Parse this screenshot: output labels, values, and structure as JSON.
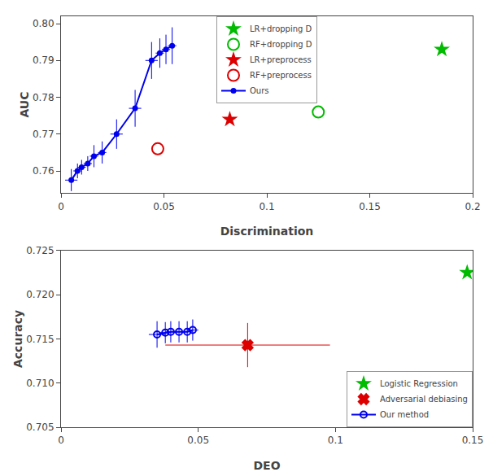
{
  "chart_data": [
    {
      "type": "scatter",
      "xlabel": "Discrimination",
      "ylabel": "AUC",
      "xlim": [
        0,
        0.2
      ],
      "ylim": [
        0.754,
        0.802
      ],
      "xticks": [
        0,
        0.05,
        0.1,
        0.15,
        0.2
      ],
      "yticks": [
        0.76,
        0.77,
        0.78,
        0.79,
        {
          "value": 0.8,
          "label": "0.80"
        }
      ],
      "grid": false,
      "legend": "upper center",
      "series": [
        {
          "name": "LR+dropping D",
          "color": "#00BB00",
          "marker": "star",
          "x": [
            0.185
          ],
          "y": [
            0.793
          ]
        },
        {
          "name": "RF+dropping D",
          "color": "#00BB00",
          "marker": "circle-open",
          "x": [
            0.125
          ],
          "y": [
            0.776
          ]
        },
        {
          "name": "LR+preprocess",
          "color": "#DD0000",
          "marker": "star",
          "x": [
            0.082
          ],
          "y": [
            0.774
          ]
        },
        {
          "name": "RF+preprocess",
          "color": "#DD0000",
          "marker": "circle-open",
          "x": [
            0.047
          ],
          "y": [
            0.766
          ]
        },
        {
          "name": "Ours",
          "color": "#0000EE",
          "marker": "circle",
          "line_style": "solid",
          "x": [
            0.005,
            0.008,
            0.01,
            0.013,
            0.016,
            0.02,
            0.027,
            0.036,
            0.044,
            0.048,
            0.051,
            0.054
          ],
          "y": [
            0.7575,
            0.76,
            0.761,
            0.762,
            0.764,
            0.765,
            0.77,
            0.777,
            0.79,
            0.792,
            0.793,
            0.794
          ],
          "xerr": [
            0.003,
            0.002,
            0.002,
            0.002,
            0.002,
            0.002,
            0.003,
            0.003,
            0.003,
            0.002,
            0.002,
            0.002
          ],
          "yerr": [
            0.003,
            0.002,
            0.002,
            0.002,
            0.003,
            0.003,
            0.004,
            0.005,
            0.005,
            0.004,
            0.004,
            0.005
          ]
        }
      ]
    },
    {
      "type": "scatter",
      "xlabel": "DEO",
      "ylabel": "Accuracy",
      "xlim": [
        0,
        0.15
      ],
      "ylim": [
        0.705,
        0.725
      ],
      "xticks": [
        0,
        0.05,
        0.1,
        0.15
      ],
      "yticks": [
        0.705,
        {
          "value": 0.71,
          "label": "0.710"
        },
        0.715,
        {
          "value": 0.72,
          "label": "0.720"
        },
        0.725
      ],
      "grid": false,
      "legend": "lower right",
      "series": [
        {
          "name": "Logistic Regression",
          "color": "#00BB00",
          "marker": "star",
          "x": [
            0.148
          ],
          "y": [
            0.7225
          ]
        },
        {
          "name": "Adversarial debiasing",
          "color": "#DD0000",
          "marker": "x",
          "x": [
            0.068
          ],
          "y": [
            0.7143
          ],
          "xerr": [
            0.03
          ],
          "yerr": [
            0.0025
          ]
        },
        {
          "name": "Our method",
          "color": "#0000EE",
          "marker": "circle-open",
          "line_style": "solid",
          "x": [
            0.035,
            0.038,
            0.04,
            0.043,
            0.046,
            0.048
          ],
          "y": [
            0.7155,
            0.7157,
            0.7158,
            0.7158,
            0.7158,
            0.716
          ],
          "xerr": [
            0.003,
            0.002,
            0.002,
            0.002,
            0.002,
            0.002
          ],
          "yerr": [
            0.0015,
            0.0012,
            0.0012,
            0.0012,
            0.0012,
            0.0012
          ]
        }
      ]
    }
  ]
}
